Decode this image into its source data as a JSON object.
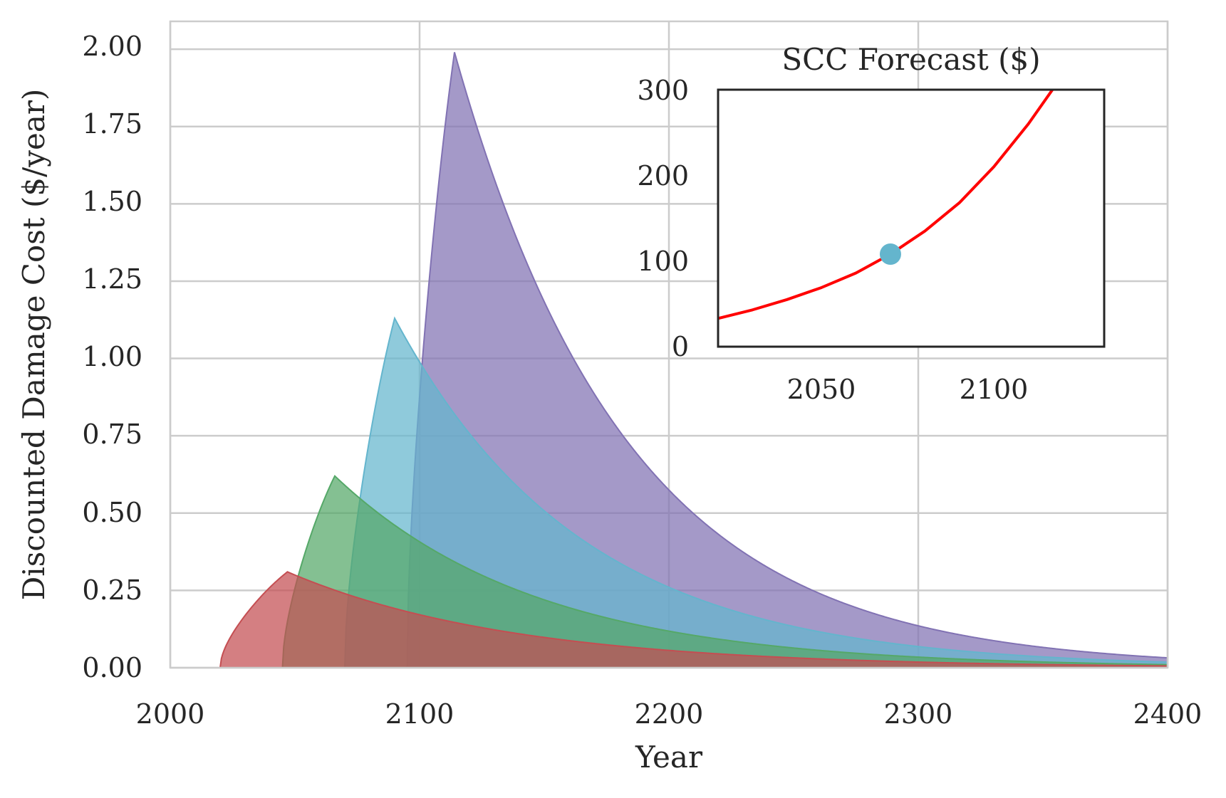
{
  "chart_data": [
    {
      "type": "area",
      "title": "",
      "xlabel": "Year",
      "ylabel": "Discounted Damage Cost ($/year)",
      "xlim": [
        2000,
        2400
      ],
      "ylim": [
        0,
        2.09
      ],
      "xticks": [
        "2000",
        "2100",
        "2200",
        "2300",
        "2400"
      ],
      "yticks": [
        "0.00",
        "0.25",
        "0.50",
        "0.75",
        "1.00",
        "1.25",
        "1.50",
        "1.75",
        "2.00"
      ],
      "grid": true,
      "series": [
        {
          "start_year": 2095,
          "peak_year": 2114,
          "peak_value": 1.99,
          "end_value_2400": 0.032,
          "color": "#8172b3"
        },
        {
          "start_year": 2070,
          "peak_year": 2090,
          "peak_value": 1.13,
          "end_value_2400": 0.018,
          "color": "#64b5cd"
        },
        {
          "start_year": 2045,
          "peak_year": 2066,
          "peak_value": 0.62,
          "end_value_2400": 0.01,
          "color": "#55a868"
        },
        {
          "start_year": 2020,
          "peak_year": 2047,
          "peak_value": 0.31,
          "end_value_2400": 0.006,
          "color": "#c44e52"
        }
      ]
    },
    {
      "type": "line",
      "title": "SCC Forecast ($)",
      "xlim": [
        2020,
        2132
      ],
      "ylim": [
        0,
        300
      ],
      "xticks": [
        "2050",
        "2100"
      ],
      "yticks": [
        "0",
        "100",
        "200",
        "300"
      ],
      "grid": false,
      "series": [
        {
          "x": [
            2020,
            2030,
            2040,
            2050,
            2060,
            2070,
            2080,
            2090,
            2100,
            2110,
            2117,
            2122
          ],
          "values": [
            33,
            43,
            55,
            69,
            86,
            108,
            135,
            168,
            210,
            260,
            300,
            330
          ],
          "color": "#ff0000"
        }
      ],
      "marker": {
        "x": 2070,
        "y": 108,
        "color": "#64b5cd"
      }
    }
  ]
}
